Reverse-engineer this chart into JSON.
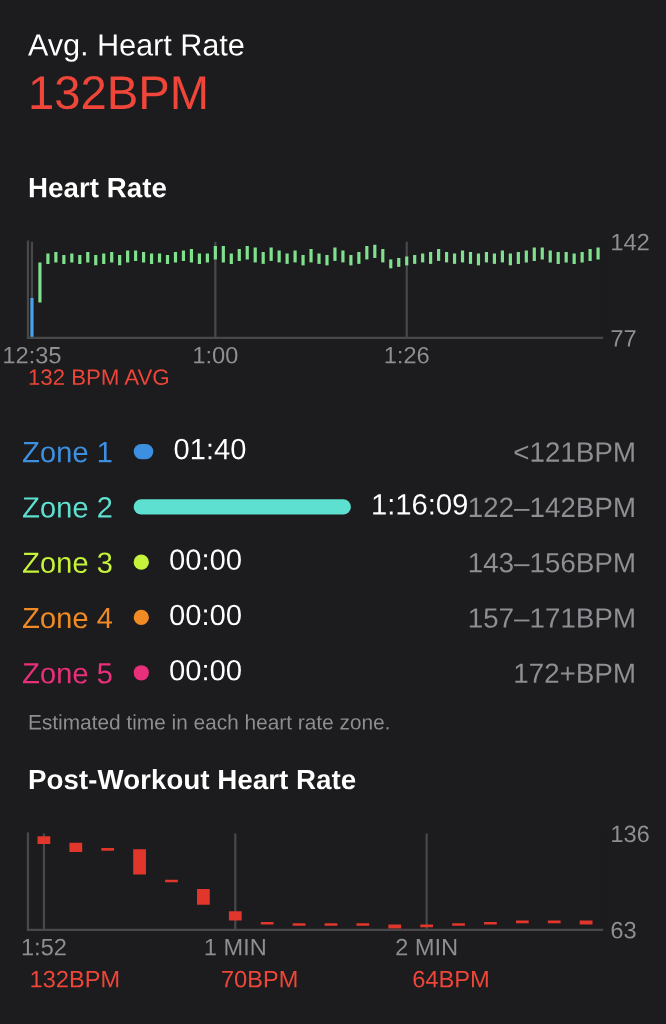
{
  "chart_data": [
    {
      "type": "other",
      "title": "Avg. Heart Rate",
      "annotations": [
        "132BPM"
      ]
    },
    {
      "type": "bar",
      "title": "Heart Rate",
      "annotations": [
        "132 BPM AVG"
      ],
      "categories": [
        "12:35",
        null,
        null,
        null,
        null,
        null,
        null,
        null,
        null,
        null,
        null,
        null,
        null,
        null,
        null,
        null,
        null,
        null,
        null,
        null,
        null,
        null,
        null,
        "1:00",
        null,
        null,
        null,
        null,
        null,
        null,
        null,
        null,
        null,
        null,
        null,
        null,
        null,
        null,
        null,
        null,
        null,
        null,
        null,
        null,
        null,
        null,
        null,
        "1:26",
        null,
        null,
        null,
        null,
        null,
        null,
        null,
        null,
        null,
        null,
        null,
        null,
        null,
        null,
        null,
        null,
        null,
        null,
        null,
        null,
        null,
        null,
        null,
        null
      ],
      "base": [
        77,
        101,
        127,
        128,
        127,
        128,
        127,
        128,
        126,
        127,
        128,
        126,
        128,
        129,
        128,
        127,
        128,
        127,
        128,
        129,
        128,
        127,
        128,
        130,
        128,
        127,
        129,
        130,
        128,
        127,
        129,
        128,
        127,
        128,
        126,
        128,
        127,
        126,
        129,
        128,
        126,
        127,
        130,
        131,
        128,
        124,
        125,
        126,
        127,
        128,
        127,
        129,
        128,
        127,
        128,
        127,
        126,
        128,
        127,
        128,
        126,
        127,
        128,
        129,
        130,
        128,
        127,
        128,
        127,
        128,
        129,
        130
      ],
      "values": [
        27,
        27,
        7,
        7,
        6,
        6,
        6,
        7,
        7,
        7,
        7,
        7,
        8,
        7,
        7,
        7,
        6,
        6,
        7,
        7,
        9,
        7,
        6,
        9,
        11,
        7,
        8,
        9,
        10,
        8,
        9,
        8,
        7,
        8,
        7,
        9,
        7,
        7,
        9,
        8,
        7,
        8,
        9,
        9,
        9,
        6,
        6,
        6,
        6,
        6,
        8,
        8,
        7,
        7,
        8,
        8,
        8,
        7,
        7,
        8,
        8,
        8,
        8,
        9,
        8,
        8,
        8,
        7,
        7,
        7,
        8,
        8
      ],
      "colors": [
        "#4aa3e8",
        "#7fe08e",
        "#7fe08e",
        "#7fe08e",
        "#7fe08e",
        "#7fe08e",
        "#7fe08e",
        "#7fe08e",
        "#7fe08e",
        "#7fe08e",
        "#7fe08e",
        "#7fe08e",
        "#7fe08e",
        "#7fe08e",
        "#7fe08e",
        "#7fe08e",
        "#7fe08e",
        "#7fe08e",
        "#7fe08e",
        "#7fe08e",
        "#7fe08e",
        "#7fe08e",
        "#7fe08e",
        "#7fe08e",
        "#7fe08e",
        "#7fe08e",
        "#7fe08e",
        "#7fe08e",
        "#7fe08e",
        "#7fe08e",
        "#7fe08e",
        "#7fe08e",
        "#7fe08e",
        "#7fe08e",
        "#7fe08e",
        "#7fe08e",
        "#7fe08e",
        "#7fe08e",
        "#7fe08e",
        "#7fe08e",
        "#7fe08e",
        "#7fe08e",
        "#7fe08e",
        "#7fe08e",
        "#7fe08e",
        "#7fe08e",
        "#7fe08e",
        "#7fe08e",
        "#7fe08e",
        "#7fe08e",
        "#7fe08e",
        "#7fe08e",
        "#7fe08e",
        "#7fe08e",
        "#7fe08e",
        "#7fe08e",
        "#7fe08e",
        "#7fe08e",
        "#7fe08e",
        "#7fe08e",
        "#7fe08e",
        "#7fe08e",
        "#7fe08e",
        "#7fe08e",
        "#7fe08e",
        "#7fe08e",
        "#7fe08e",
        "#7fe08e",
        "#7fe08e",
        "#7fe08e",
        "#7fe08e",
        "#7fe08e"
      ],
      "ylim": [
        77,
        142
      ],
      "yticks": [
        77,
        142
      ],
      "grid": "x",
      "legend": false
    },
    {
      "type": "bar",
      "orientation": "horizontal",
      "categories": [
        "Zone 1",
        "Zone 2",
        "Zone 3",
        "Zone 4",
        "Zone 5"
      ],
      "values": [
        100,
        4569,
        0,
        0,
        0
      ],
      "value_labels": [
        "01:40",
        "1:16:09",
        "00:00",
        "00:00",
        "00:00"
      ],
      "colors": [
        "#3d8fe0",
        "#5ee0d0",
        "#c5f23a",
        "#f08a24",
        "#e8307a"
      ],
      "y2_categories": [
        "<121BPM",
        "122–142BPM",
        "143–156BPM",
        "157–171BPM",
        "172+BPM"
      ],
      "annotations": [
        "Estimated time in each heart rate zone."
      ],
      "legend": false
    },
    {
      "type": "bar",
      "title": "Post-Workout Heart Rate",
      "categories": [
        "1:52",
        null,
        null,
        null,
        null,
        null,
        "1 MIN",
        null,
        null,
        null,
        null,
        null,
        "2 MIN",
        null,
        null,
        null,
        null,
        null
      ],
      "base": [
        128,
        122,
        123,
        105,
        99,
        82,
        70,
        67,
        66,
        66,
        66,
        64,
        65,
        66,
        67,
        68,
        68,
        67
      ],
      "values": [
        6,
        7,
        2,
        19,
        2,
        12,
        7,
        2,
        2,
        2,
        2,
        3,
        2,
        2,
        2,
        2,
        2,
        3
      ],
      "color": "#e0362c",
      "ylim": [
        63,
        136
      ],
      "yticks": [
        63,
        136
      ],
      "grid": "x",
      "legend": false,
      "annotations": [
        "132BPM",
        "70BPM",
        "64BPM"
      ]
    }
  ]
}
